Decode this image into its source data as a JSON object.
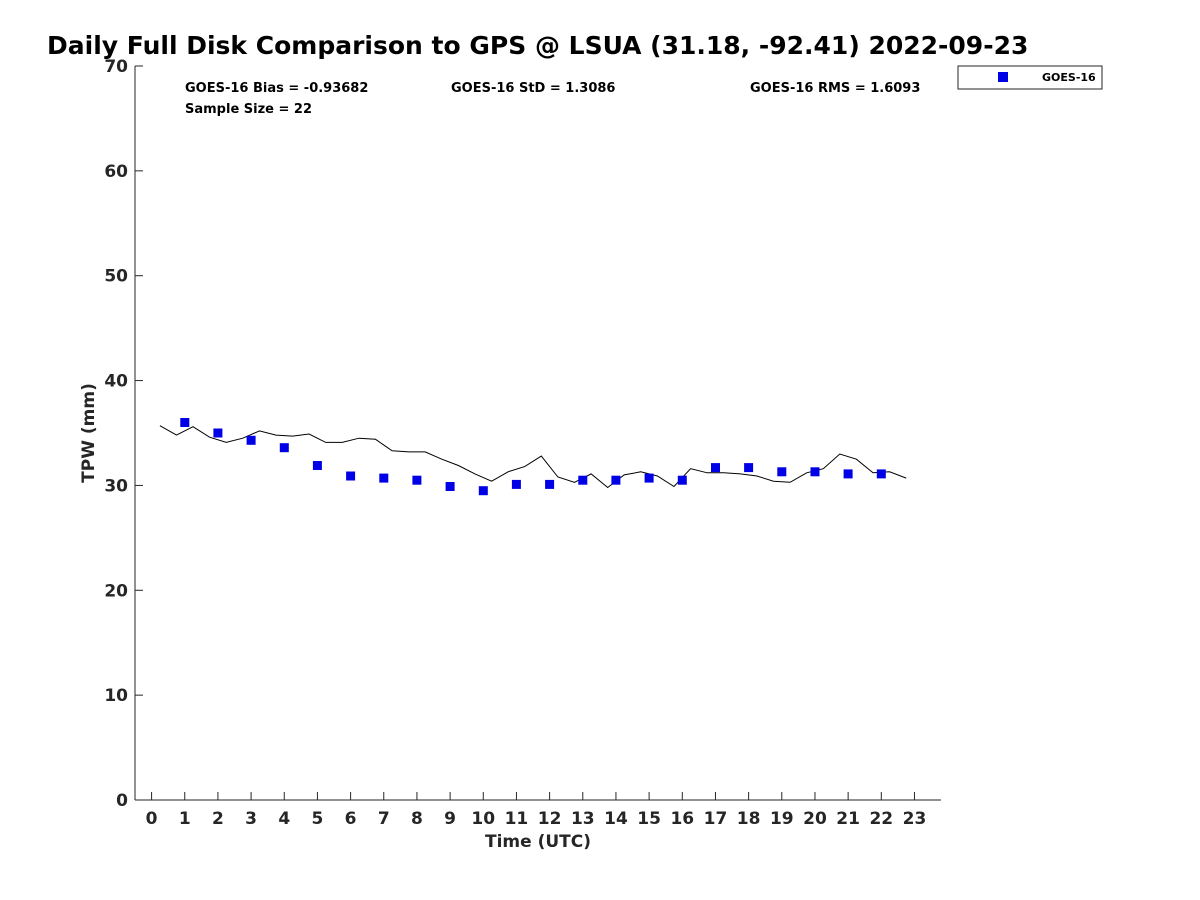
{
  "chart_data": {
    "type": "scatter",
    "title": "Daily Full Disk Comparison to GPS @ LSUA (31.18, -92.41) 2022-09-23",
    "xlabel": "Time (UTC)",
    "ylabel": "TPW (mm)",
    "xlim": [
      -0.5,
      23.8
    ],
    "ylim": [
      0,
      70
    ],
    "xticks": [
      0,
      1,
      2,
      3,
      4,
      5,
      6,
      7,
      8,
      9,
      10,
      11,
      12,
      13,
      14,
      15,
      16,
      17,
      18,
      19,
      20,
      21,
      22,
      23
    ],
    "yticks": [
      0,
      10,
      20,
      30,
      40,
      50,
      60,
      70
    ],
    "grid": false,
    "legend_placement": "outside-top-right",
    "stats": {
      "bias": "GOES-16 Bias = -0.93682",
      "std": "GOES-16 StD = 1.3086",
      "rms": "GOES-16 RMS = 1.6093",
      "sample": "Sample Size = 22"
    },
    "series": [
      {
        "name": "GOES-16",
        "kind": "marker",
        "marker": "square",
        "color": "#0000e6",
        "x": [
          1,
          2,
          3,
          4,
          5,
          6,
          7,
          8,
          9,
          10,
          11,
          12,
          13,
          14,
          15,
          16,
          17,
          18,
          19,
          20,
          21,
          22
        ],
        "y": [
          36.0,
          35.0,
          34.3,
          33.6,
          31.9,
          30.9,
          30.7,
          30.5,
          29.9,
          29.5,
          30.1,
          30.1,
          30.5,
          30.5,
          30.7,
          30.5,
          31.7,
          31.7,
          31.3,
          31.3,
          31.1,
          31.1
        ]
      },
      {
        "kind": "line",
        "color": "#000000",
        "x": [
          0.25,
          0.75,
          1.25,
          1.75,
          2.25,
          2.75,
          3.25,
          3.75,
          4.25,
          4.75,
          5.25,
          5.75,
          6.25,
          6.75,
          7.25,
          7.75,
          8.25,
          8.75,
          9.25,
          9.75,
          10.25,
          10.75,
          11.25,
          11.75,
          12.25,
          12.75,
          13.25,
          13.75,
          14.25,
          14.75,
          15.25,
          15.75,
          16.25,
          16.75,
          17.25,
          17.75,
          18.25,
          18.75,
          19.25,
          19.75,
          20.25,
          20.75,
          21.25,
          21.75,
          22.25,
          22.75
        ],
        "y": [
          35.7,
          34.8,
          35.6,
          34.6,
          34.1,
          34.5,
          35.2,
          34.8,
          34.7,
          34.9,
          34.1,
          34.1,
          34.5,
          34.4,
          33.3,
          33.2,
          33.2,
          32.5,
          31.9,
          31.1,
          30.4,
          31.3,
          31.8,
          32.8,
          30.8,
          30.3,
          31.1,
          29.8,
          31.0,
          31.3,
          30.9,
          29.9,
          31.6,
          31.2,
          31.2,
          31.1,
          30.9,
          30.4,
          30.3,
          31.2,
          31.6,
          33.0,
          32.5,
          31.2,
          31.3,
          30.7
        ]
      }
    ]
  }
}
